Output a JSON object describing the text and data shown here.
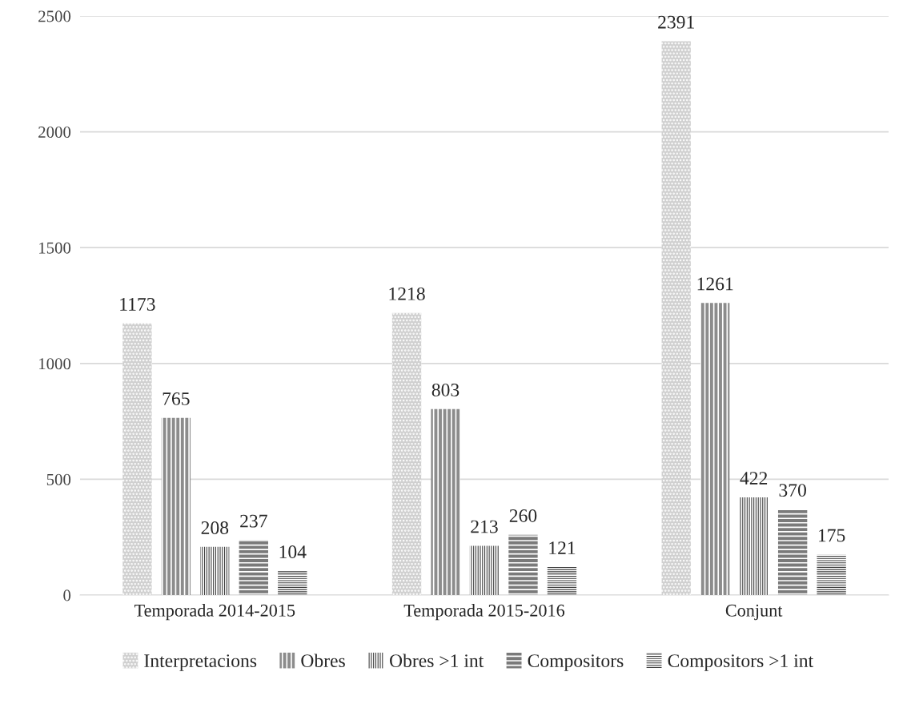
{
  "chart_data": {
    "type": "bar",
    "categories": [
      "Temporada 2014-2015",
      "Temporada 2015-2016",
      "Conjunt"
    ],
    "series": [
      {
        "name": "Interpretacions",
        "color": "#d0d0d0",
        "values": [
          1173,
          1218,
          2391
        ]
      },
      {
        "name": "Obres",
        "color": "#8c8c8c",
        "values": [
          765,
          803,
          1261
        ]
      },
      {
        "name": "Obres >1 int",
        "color": "#404040",
        "values": [
          208,
          213,
          422
        ]
      },
      {
        "name": "Compositors",
        "color": "#7a7a7a",
        "values": [
          237,
          260,
          370
        ]
      },
      {
        "name": "Compositors >1 int",
        "color": "#3a3a3a",
        "values": [
          104,
          121,
          175
        ]
      }
    ],
    "ylim": [
      0,
      2500
    ],
    "yticks": [
      0,
      500,
      1000,
      1500,
      2000,
      2500
    ],
    "grid": "y",
    "legend": "bottom",
    "data_labels": true
  }
}
